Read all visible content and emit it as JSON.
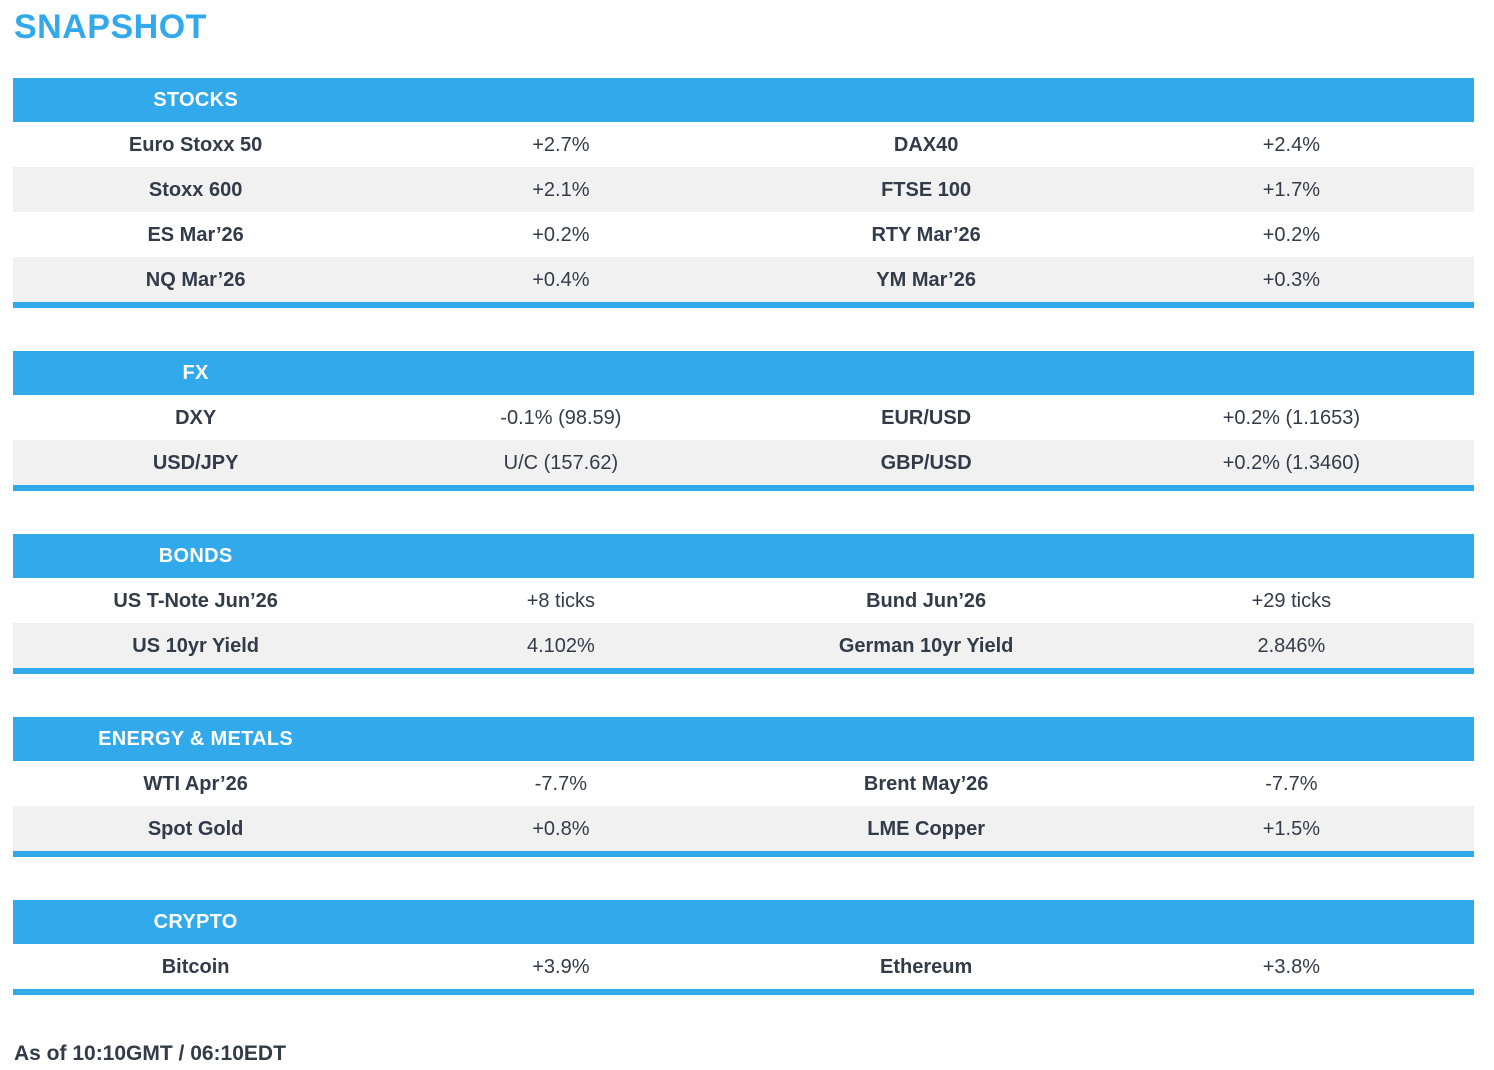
{
  "title": "SNAPSHOT",
  "footer": "As of 10:10GMT / 06:10EDT",
  "colors": {
    "accent": "#31a9ea",
    "stripe": "#f1f1f2",
    "text": "#333b48",
    "header_text": "#ffffff"
  },
  "sections": [
    {
      "name": "STOCKS",
      "rows": [
        [
          {
            "label": "Euro Stoxx 50",
            "value": "+2.7%"
          },
          {
            "label": "DAX40",
            "value": "+2.4%"
          }
        ],
        [
          {
            "label": "Stoxx 600",
            "value": "+2.1%"
          },
          {
            "label": "FTSE 100",
            "value": "+1.7%"
          }
        ],
        [
          {
            "label": "ES Mar’26",
            "value": "+0.2%"
          },
          {
            "label": "RTY Mar’26",
            "value": "+0.2%"
          }
        ],
        [
          {
            "label": "NQ Mar’26",
            "value": "+0.4%"
          },
          {
            "label": "YM Mar’26",
            "value": "+0.3%"
          }
        ]
      ]
    },
    {
      "name": "FX",
      "rows": [
        [
          {
            "label": "DXY",
            "value": "-0.1% (98.59)"
          },
          {
            "label": "EUR/USD",
            "value": "+0.2% (1.1653)"
          }
        ],
        [
          {
            "label": "USD/JPY",
            "value": "U/C (157.62)"
          },
          {
            "label": "GBP/USD",
            "value": "+0.2% (1.3460)"
          }
        ]
      ]
    },
    {
      "name": "BONDS",
      "rows": [
        [
          {
            "label": "US T-Note Jun’26",
            "value": "+8 ticks"
          },
          {
            "label": "Bund Jun’26",
            "value": "+29 ticks"
          }
        ],
        [
          {
            "label": "US 10yr Yield",
            "value": "4.102%"
          },
          {
            "label": "German 10yr Yield",
            "value": "2.846%"
          }
        ]
      ]
    },
    {
      "name": "ENERGY & METALS",
      "rows": [
        [
          {
            "label": "WTI Apr’26",
            "value": "-7.7%"
          },
          {
            "label": "Brent May’26",
            "value": "-7.7%"
          }
        ],
        [
          {
            "label": "Spot Gold",
            "value": "+0.8%"
          },
          {
            "label": "LME Copper",
            "value": "+1.5%"
          }
        ]
      ]
    },
    {
      "name": "CRYPTO",
      "rows": [
        [
          {
            "label": "Bitcoin",
            "value": "+3.9%"
          },
          {
            "label": "Ethereum",
            "value": "+3.8%"
          }
        ]
      ]
    }
  ]
}
